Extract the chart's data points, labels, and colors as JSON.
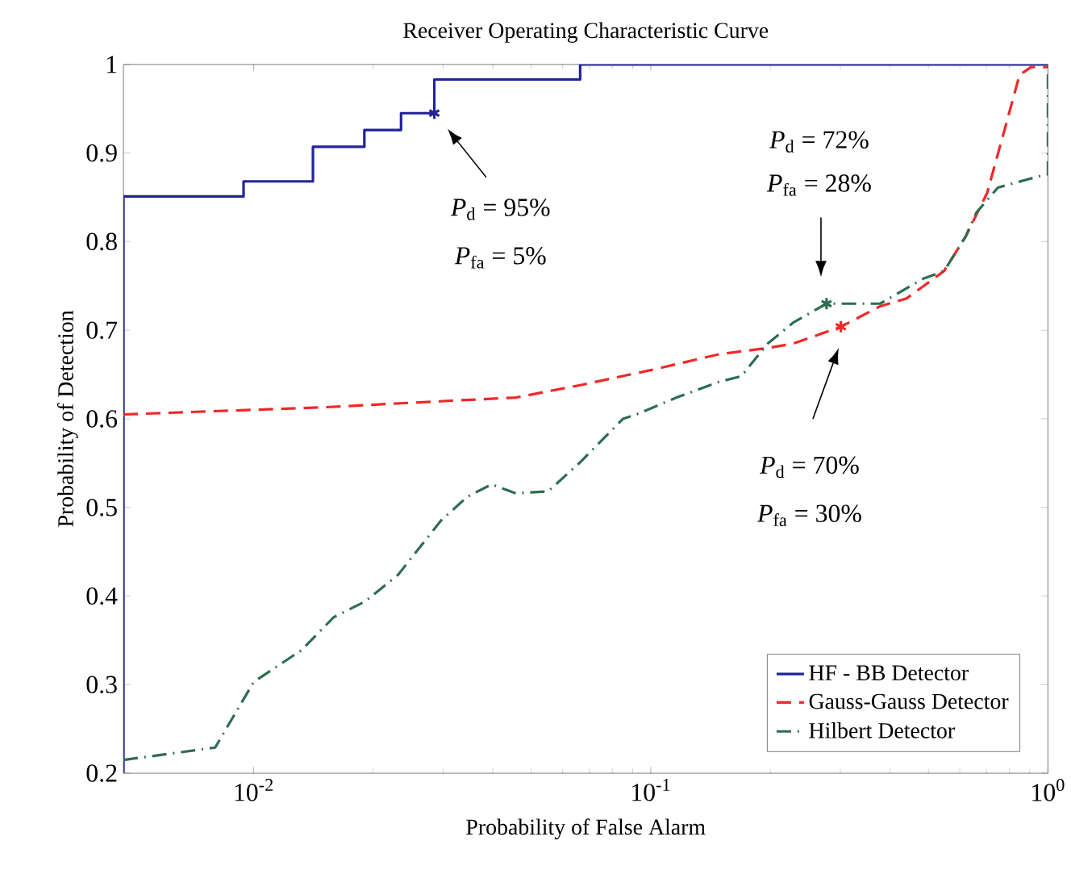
{
  "chart_data": {
    "type": "line",
    "title": "Receiver Operating Characteristic Curve",
    "xlabel": "Probability of False Alarm",
    "ylabel": "Probability of Detection",
    "log": "x",
    "xlim": [
      0.0047,
      1
    ],
    "ylim": [
      0.2,
      1
    ],
    "xticks": [
      {
        "value": 0.01,
        "label": "10$^{-2}$"
      },
      {
        "value": 0.1,
        "label": "10$^{-1}$"
      },
      {
        "value": 1,
        "label": "10$^{0}$"
      }
    ],
    "yticks": [
      0.2,
      0.3,
      0.4,
      0.5,
      0.6,
      0.7,
      0.8,
      0.9,
      1
    ],
    "grid": false,
    "legend": "bottom right",
    "series": [
      {
        "name": "HF - BB Detector",
        "color": "#23239a",
        "line_style": "solid",
        "x": [
          0.0047,
          0.0047,
          0.00943,
          0.00943,
          0.0141,
          0.0141,
          0.019,
          0.019,
          0.0235,
          0.0235,
          0.0285,
          0.0285,
          0.0664,
          0.0664,
          1
        ],
        "values": [
          0.2,
          0.851,
          0.851,
          0.868,
          0.868,
          0.907,
          0.907,
          0.926,
          0.926,
          0.945,
          0.945,
          0.983,
          0.983,
          1,
          1
        ]
      },
      {
        "name": "Gauss-Gauss Detector",
        "color": "#f02828",
        "line_style": "dashed",
        "x": [
          0.0047,
          0.015,
          0.03,
          0.0457,
          0.0664,
          0.1,
          0.149,
          0.197,
          0.229,
          0.301,
          0.378,
          0.441,
          0.548,
          0.621,
          0.703,
          0.772,
          0.848,
          0.906,
          1
        ],
        "values": [
          0.605,
          0.613,
          0.62,
          0.624,
          0.638,
          0.655,
          0.673,
          0.68,
          0.685,
          0.704,
          0.727,
          0.736,
          0.767,
          0.806,
          0.855,
          0.921,
          0.988,
          0.997,
          0.997
        ]
      },
      {
        "name": "Hilbert Detector",
        "color": "#2e6e50",
        "line_style": "dashdot",
        "x": [
          0.0047,
          0.008,
          0.01,
          0.0132,
          0.0159,
          0.0191,
          0.0231,
          0.0296,
          0.0345,
          0.0397,
          0.0457,
          0.0551,
          0.0664,
          0.0851,
          0.0933,
          0.116,
          0.149,
          0.169,
          0.197,
          0.229,
          0.277,
          0.378,
          0.484,
          0.548,
          0.621,
          0.661,
          0.748,
          0.99,
          1,
          1
        ],
        "values": [
          0.215,
          0.229,
          0.303,
          0.339,
          0.376,
          0.394,
          0.424,
          0.485,
          0.512,
          0.526,
          0.516,
          0.518,
          0.551,
          0.6,
          0.606,
          0.624,
          0.642,
          0.648,
          0.685,
          0.709,
          0.73,
          0.73,
          0.758,
          0.767,
          0.806,
          0.833,
          0.861,
          0.876,
          0.876,
          1
        ]
      },
      {
        "type": "scatter",
        "marker": "cross",
        "color": "#23239a",
        "x": [
          0.0285
        ],
        "values": [
          0.945
        ]
      },
      {
        "type": "scatter",
        "marker": "cross",
        "color": "#2e6e50",
        "x": [
          0.277
        ],
        "values": [
          0.73
        ]
      },
      {
        "type": "scatter",
        "marker": "cross",
        "color": "#f02828",
        "x": [
          0.301
        ],
        "values": [
          0.704
        ]
      }
    ],
    "annotations": [
      "*P*$_{d}$ = 95%",
      "*P*$_{fa}$ = 5%",
      "*P*$_{d}$ = 72%",
      "*P*$_{fa}$ = 28%",
      "*P*$_{d}$ = 70%",
      "*P*$_{fa}$ = 30%"
    ]
  }
}
